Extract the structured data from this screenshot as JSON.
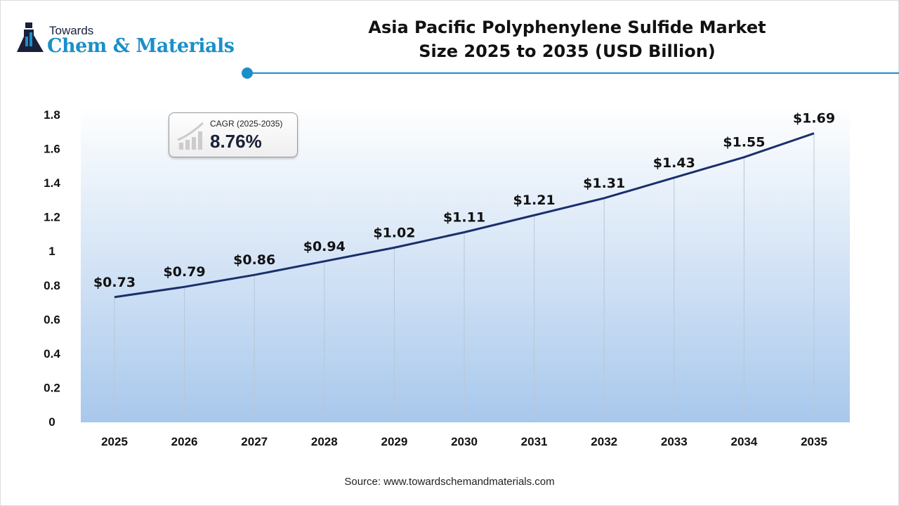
{
  "logo": {
    "line1": "Towards",
    "line2": "Chem & Materials"
  },
  "title": {
    "line1": "Asia Pacific Polyphenylene Sulfide Market",
    "line2": "Size 2025 to 2035 (USD Billion)"
  },
  "cagr": {
    "label": "CAGR (2025-2035)",
    "value": "8.76%"
  },
  "source": "Source: www.towardschemandmaterials.com",
  "colors": {
    "line": "#1a2f6b",
    "accent": "#1b8fc9",
    "area_bottom": "#a8c8ec"
  },
  "chart_data": {
    "type": "line",
    "categories": [
      "2025",
      "2026",
      "2027",
      "2028",
      "2029",
      "2030",
      "2031",
      "2032",
      "2033",
      "2034",
      "2035"
    ],
    "values": [
      0.73,
      0.79,
      0.86,
      0.94,
      1.02,
      1.11,
      1.21,
      1.31,
      1.43,
      1.55,
      1.69
    ],
    "data_labels": [
      "$0.73",
      "$0.79",
      "$0.86",
      "$0.94",
      "$1.02",
      "$1.11",
      "$1.21",
      "$1.31",
      "$1.43",
      "$1.55",
      "$1.69"
    ],
    "yticks": [
      "0",
      "0.2",
      "0.4",
      "0.6",
      "0.8",
      "1",
      "1.2",
      "1.4",
      "1.6",
      "1.8"
    ],
    "ylim": [
      0,
      1.8
    ],
    "grid": "vertical drop lines"
  }
}
